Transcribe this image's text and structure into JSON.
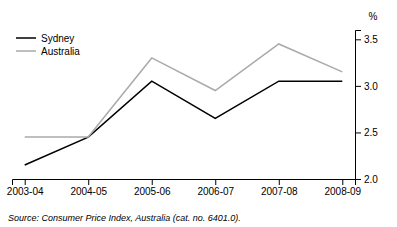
{
  "chart_data": {
    "type": "line",
    "categories": [
      "2003-04",
      "2004-05",
      "2005-06",
      "2006-07",
      "2007-08",
      "2008-09"
    ],
    "series": [
      {
        "name": "Sydney",
        "color": "#000000",
        "values": [
          2.15,
          2.45,
          3.05,
          2.65,
          3.05,
          3.05
        ]
      },
      {
        "name": "Australia",
        "color": "#aaaaaa",
        "values": [
          2.45,
          2.45,
          3.3,
          2.95,
          3.45,
          3.15
        ]
      }
    ],
    "ylim": [
      2.0,
      3.6
    ],
    "yticks": [
      {
        "value": 2.0,
        "label": "2.0"
      },
      2.5,
      {
        "value": 3.0,
        "label": "3.0"
      },
      3.5
    ],
    "ylabel": "%",
    "annotation": "Source: Consumer Price Index, Australia (cat. no. 6401.0).",
    "legend": "top-left",
    "grid": false
  }
}
